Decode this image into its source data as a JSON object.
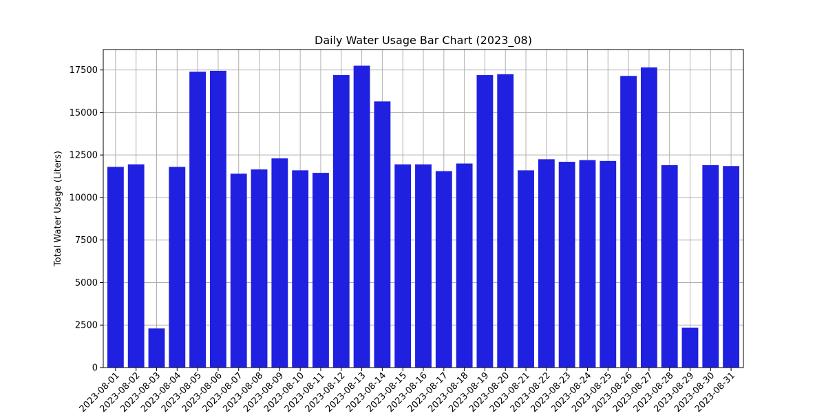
{
  "chart_data": {
    "type": "bar",
    "title": "Daily Water Usage Bar Chart (2023_08)",
    "xlabel": "",
    "ylabel": "Total Water Usage (Liters)",
    "ylim": [
      0,
      18700
    ],
    "yticks": [
      0,
      2500,
      5000,
      7500,
      10000,
      12500,
      15000,
      17500
    ],
    "grid": true,
    "bar_color": "#2020e0",
    "categories": [
      "2023-08-01",
      "2023-08-02",
      "2023-08-03",
      "2023-08-04",
      "2023-08-05",
      "2023-08-06",
      "2023-08-07",
      "2023-08-08",
      "2023-08-09",
      "2023-08-10",
      "2023-08-11",
      "2023-08-12",
      "2023-08-13",
      "2023-08-14",
      "2023-08-15",
      "2023-08-16",
      "2023-08-17",
      "2023-08-18",
      "2023-08-19",
      "2023-08-20",
      "2023-08-21",
      "2023-08-22",
      "2023-08-23",
      "2023-08-24",
      "2023-08-25",
      "2023-08-26",
      "2023-08-27",
      "2023-08-28",
      "2023-08-29",
      "2023-08-30",
      "2023-08-31"
    ],
    "values": [
      11800,
      11950,
      2300,
      11800,
      17400,
      17450,
      11400,
      11650,
      12300,
      11600,
      11450,
      17200,
      17750,
      15650,
      11950,
      11950,
      11550,
      12000,
      17200,
      17250,
      11600,
      12250,
      12100,
      12200,
      12150,
      17150,
      17650,
      11900,
      2350,
      11900,
      11850
    ]
  }
}
